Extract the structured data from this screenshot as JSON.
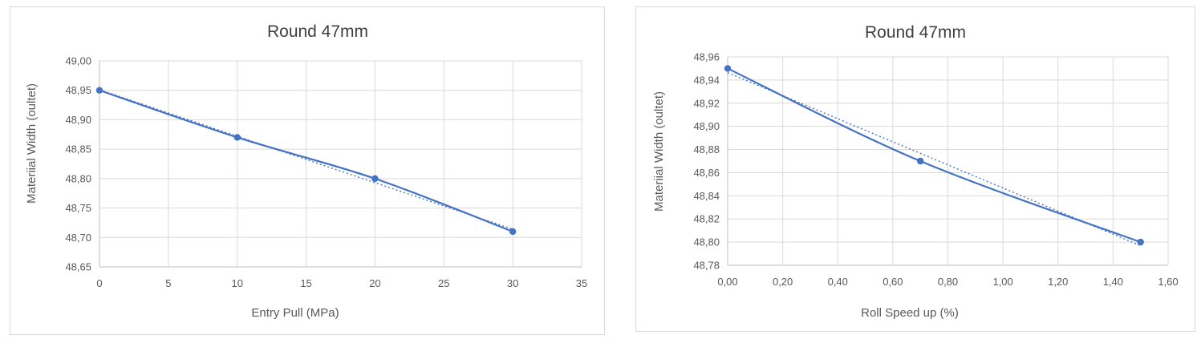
{
  "chart_data": [
    {
      "type": "line",
      "title": "Round 47mm",
      "xlabel": "Entry Pull (MPa)",
      "ylabel": "Materiial Width (oultet)",
      "xlim": [
        0,
        35
      ],
      "ylim": [
        48.65,
        49.0
      ],
      "x_ticks": [
        "0",
        "5",
        "10",
        "15",
        "20",
        "25",
        "30",
        "35"
      ],
      "y_ticks": [
        "48,65",
        "48,70",
        "48,75",
        "48,80",
        "48,85",
        "48,90",
        "48,95",
        "49,00"
      ],
      "grid": true,
      "legend": "none",
      "series": [
        {
          "x": [
            0,
            10,
            20,
            30
          ],
          "values": [
            48.95,
            48.87,
            48.8,
            48.71
          ],
          "color": "#4472c4",
          "marker": "circle",
          "smooth": true
        }
      ],
      "trendline": {
        "type": "linear",
        "style": "dotted",
        "color": "#4472c4"
      }
    },
    {
      "type": "line",
      "title": "Round 47mm",
      "xlabel": "Roll Speed up (%)",
      "ylabel": "Materiial Width (oultet)",
      "xlim": [
        0,
        1.6
      ],
      "ylim": [
        48.78,
        48.96
      ],
      "x_ticks": [
        "0,00",
        "0,20",
        "0,40",
        "0,60",
        "0,80",
        "1,00",
        "1,20",
        "1,40",
        "1,60"
      ],
      "y_ticks": [
        "48,78",
        "48,80",
        "48,82",
        "48,84",
        "48,86",
        "48,88",
        "48,90",
        "48,92",
        "48,94",
        "48,96"
      ],
      "grid": true,
      "legend": "none",
      "series": [
        {
          "x": [
            0.0,
            0.7,
            1.5
          ],
          "values": [
            48.95,
            48.87,
            48.8
          ],
          "color": "#4472c4",
          "marker": "circle",
          "smooth": true
        }
      ],
      "trendline": {
        "type": "linear",
        "style": "dotted",
        "color": "#4472c4"
      }
    }
  ]
}
